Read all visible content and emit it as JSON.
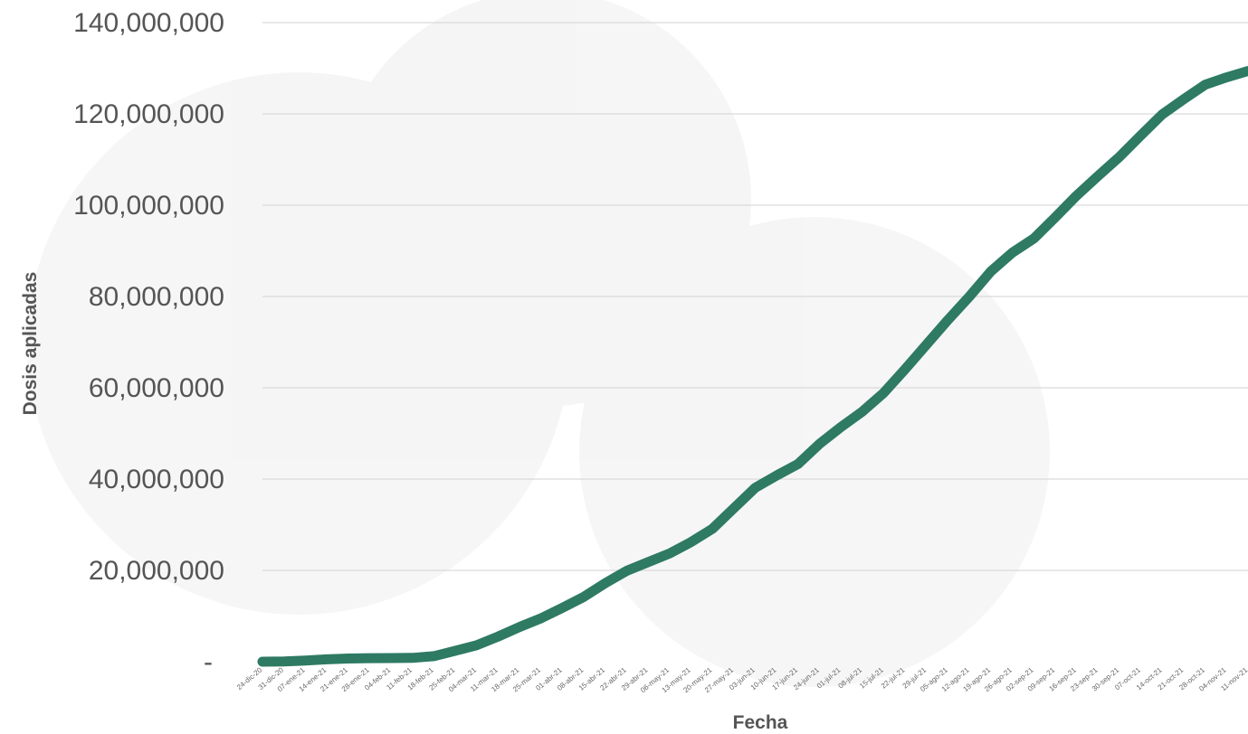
{
  "chart_data": {
    "type": "line",
    "title": "",
    "xlabel": "Fecha",
    "ylabel": "Dosis aplicadas",
    "ylim": [
      0,
      140000000
    ],
    "grid": true,
    "line_color": "#2e7a63",
    "y_ticks": [
      {
        "value": 0,
        "label": "-"
      },
      {
        "value": 20000000,
        "label": "20,000,000"
      },
      {
        "value": 40000000,
        "label": "40,000,000"
      },
      {
        "value": 60000000,
        "label": "60,000,000"
      },
      {
        "value": 80000000,
        "label": "80,000,000"
      },
      {
        "value": 100000000,
        "label": "100,000,000"
      },
      {
        "value": 120000000,
        "label": "120,000,000"
      },
      {
        "value": 140000000,
        "label": "140,000,000"
      }
    ],
    "categories": [
      "24-dic-20",
      "31-dic-20",
      "07-ene-21",
      "14-ene-21",
      "21-ene-21",
      "28-ene-21",
      "04-feb-21",
      "11-feb-21",
      "18-feb-21",
      "25-feb-21",
      "04-mar-21",
      "11-mar-21",
      "18-mar-21",
      "25-mar-21",
      "01-abr-21",
      "08-abr-21",
      "15-abr-21",
      "22-abr-21",
      "29-abr-21",
      "06-may-21",
      "13-may-21",
      "20-may-21",
      "27-may-21",
      "03-jun-21",
      "10-jun-21",
      "17-jun-21",
      "24-jun-21",
      "01-jul-21",
      "08-jul-21",
      "15-jul-21",
      "22-jul-21",
      "29-jul-21",
      "05-ago-21",
      "12-ago-21",
      "19-ago-21",
      "26-ago-21",
      "02-sep-21",
      "09-sep-21",
      "16-sep-21",
      "23-sep-21",
      "30-sep-21",
      "07-oct-21",
      "14-oct-21",
      "21-oct-21",
      "28-oct-21",
      "04-nov-21",
      "11-nov-21"
    ],
    "series": [
      {
        "values": [
          5000,
          40000,
          250000,
          520000,
          700000,
          780000,
          800000,
          830000,
          1200000,
          2400000,
          3600000,
          5500000,
          7600000,
          9500000,
          11800000,
          14200000,
          17200000,
          19900000,
          21800000,
          23700000,
          26200000,
          29100000,
          33600000,
          38100000,
          40800000,
          43300000,
          47700000,
          51400000,
          54800000,
          58900000,
          64100000,
          69500000,
          74900000,
          80000000,
          85500000,
          89600000,
          92700000,
          97300000,
          102100000,
          106400000,
          110600000,
          115300000,
          119900000,
          123200000,
          126400000,
          128000000,
          129400000
        ]
      }
    ]
  }
}
